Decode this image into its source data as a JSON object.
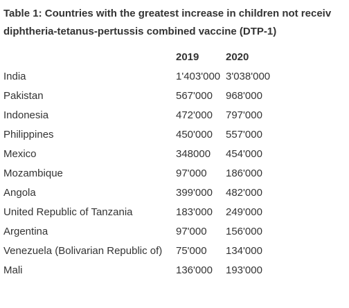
{
  "header": {
    "title_lines": [
      "Table 1: Countries with the greatest increase in children not receiv",
      "diphtheria-tetanus-pertussis combined vaccine (DTP-1)"
    ]
  },
  "table": {
    "columns": [
      "2019",
      "2020"
    ],
    "rows": [
      [
        "India",
        "1'403'000",
        "3'038'000"
      ],
      [
        "Pakistan",
        "567'000",
        "968'000"
      ],
      [
        "Indonesia",
        "472'000",
        "797'000"
      ],
      [
        "Philippines",
        "450'000",
        "557'000"
      ],
      [
        "Mexico",
        "348000",
        "454'000"
      ],
      [
        "Mozambique",
        "97'000",
        "186'000"
      ],
      [
        "Angola",
        "399'000",
        "482'000"
      ],
      [
        "United Republic of Tanzania",
        "183'000",
        "249'000"
      ],
      [
        "Argentina",
        "97'000",
        "156'000"
      ],
      [
        "Venezuela (Bolivarian Republic of)",
        "75'000",
        "134'000"
      ],
      [
        "Mali",
        "136'000",
        "193'000"
      ]
    ]
  }
}
